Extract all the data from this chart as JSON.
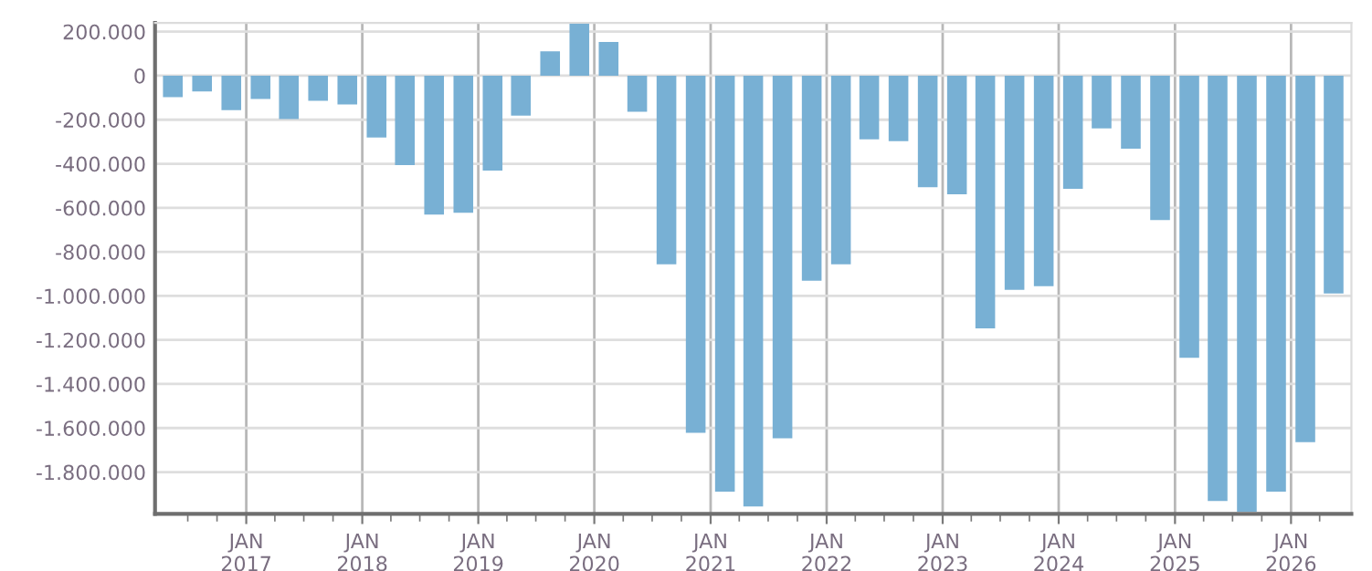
{
  "chart_data": {
    "type": "bar",
    "color": "#78b0d4",
    "x": [
      "2016-05-15",
      "2016-08-15",
      "2016-11-15",
      "2017-02-15",
      "2017-05-15",
      "2017-08-15",
      "2017-11-15",
      "2018-02-15",
      "2018-05-15",
      "2018-08-15",
      "2018-11-15",
      "2019-02-15",
      "2019-05-15",
      "2019-08-15",
      "2019-11-15",
      "2020-02-15",
      "2020-05-15",
      "2020-08-15",
      "2020-11-15",
      "2021-02-15",
      "2021-05-15",
      "2021-08-15",
      "2021-11-15",
      "2022-02-15",
      "2022-05-15",
      "2022-08-15",
      "2022-11-15",
      "2023-02-15",
      "2023-05-15",
      "2023-08-15",
      "2023-11-15",
      "2024-02-15",
      "2024-05-15",
      "2024-08-15",
      "2024-11-15",
      "2025-02-15",
      "2025-05-15",
      "2025-08-15",
      "2025-11-15",
      "2026-02-15",
      "2026-05-15"
    ],
    "values": [
      -97000,
      -72000,
      -156000,
      -106000,
      -197000,
      -114000,
      -131000,
      -281000,
      -406000,
      -631000,
      -622000,
      -431000,
      -181000,
      111000,
      236000,
      153000,
      -164000,
      -856000,
      -1622000,
      -1889000,
      -1956000,
      -1647000,
      -931000,
      -856000,
      -289000,
      -297000,
      -506000,
      -539000,
      -1147000,
      -972000,
      -956000,
      -514000,
      -239000,
      -331000,
      -656000,
      -1281000,
      -1931000,
      -1980000,
      -1889000,
      -1664000,
      -989000
    ],
    "xlim": [
      "2016-03-20",
      "2026-07-10"
    ],
    "xticks": [
      {
        "value": "2016-07-01",
        "label": null
      },
      {
        "value": "2016-10-01",
        "label": null
      },
      {
        "value": "2017-01-01",
        "label": "JAN\n2017"
      },
      {
        "value": "2017-04-01",
        "label": null
      },
      {
        "value": "2017-07-01",
        "label": null
      },
      {
        "value": "2017-10-01",
        "label": null
      },
      {
        "value": "2018-01-01",
        "label": "JAN\n2018"
      },
      {
        "value": "2018-04-01",
        "label": null
      },
      {
        "value": "2018-07-01",
        "label": null
      },
      {
        "value": "2018-10-01",
        "label": null
      },
      {
        "value": "2019-01-01",
        "label": "JAN\n2019"
      },
      {
        "value": "2019-04-01",
        "label": null
      },
      {
        "value": "2019-07-01",
        "label": null
      },
      {
        "value": "2019-10-01",
        "label": null
      },
      {
        "value": "2020-01-01",
        "label": "JAN\n2020"
      },
      {
        "value": "2020-04-01",
        "label": null
      },
      {
        "value": "2020-07-01",
        "label": null
      },
      {
        "value": "2020-10-01",
        "label": null
      },
      {
        "value": "2021-01-01",
        "label": "JAN\n2021"
      },
      {
        "value": "2021-04-01",
        "label": null
      },
      {
        "value": "2021-07-01",
        "label": null
      },
      {
        "value": "2021-10-01",
        "label": null
      },
      {
        "value": "2022-01-01",
        "label": "JAN\n2022"
      },
      {
        "value": "2022-04-01",
        "label": null
      },
      {
        "value": "2022-07-01",
        "label": null
      },
      {
        "value": "2022-10-01",
        "label": null
      },
      {
        "value": "2023-01-01",
        "label": "JAN\n2023"
      },
      {
        "value": "2023-04-01",
        "label": null
      },
      {
        "value": "2023-07-01",
        "label": null
      },
      {
        "value": "2023-10-01",
        "label": null
      },
      {
        "value": "2024-01-01",
        "label": "JAN\n2024"
      },
      {
        "value": "2024-04-01",
        "label": null
      },
      {
        "value": "2024-07-01",
        "label": null
      },
      {
        "value": "2024-10-01",
        "label": null
      },
      {
        "value": "2025-01-01",
        "label": "JAN\n2025"
      },
      {
        "value": "2025-04-01",
        "label": null
      },
      {
        "value": "2025-07-01",
        "label": null
      },
      {
        "value": "2025-10-01",
        "label": null
      },
      {
        "value": "2026-01-01",
        "label": "JAN\n2026"
      },
      {
        "value": "2026-04-01",
        "label": null
      }
    ],
    "ylim": [
      -1990000,
      240000
    ],
    "yticks": [
      {
        "value": 200000,
        "label": "200.000"
      },
      {
        "value": 0,
        "label": "0"
      },
      {
        "value": -200000,
        "label": "-200.000"
      },
      {
        "value": -400000,
        "label": "-400.000"
      },
      {
        "value": -600000,
        "label": "-600.000"
      },
      {
        "value": -800000,
        "label": "-800.000"
      },
      {
        "value": -1000000,
        "label": "-1.000.000"
      },
      {
        "value": -1200000,
        "label": "-1.200.000"
      },
      {
        "value": -1400000,
        "label": "-1.400.000"
      },
      {
        "value": -1600000,
        "label": "-1.600.000"
      },
      {
        "value": -1800000,
        "label": "-1.800.000"
      }
    ],
    "grid": true
  }
}
